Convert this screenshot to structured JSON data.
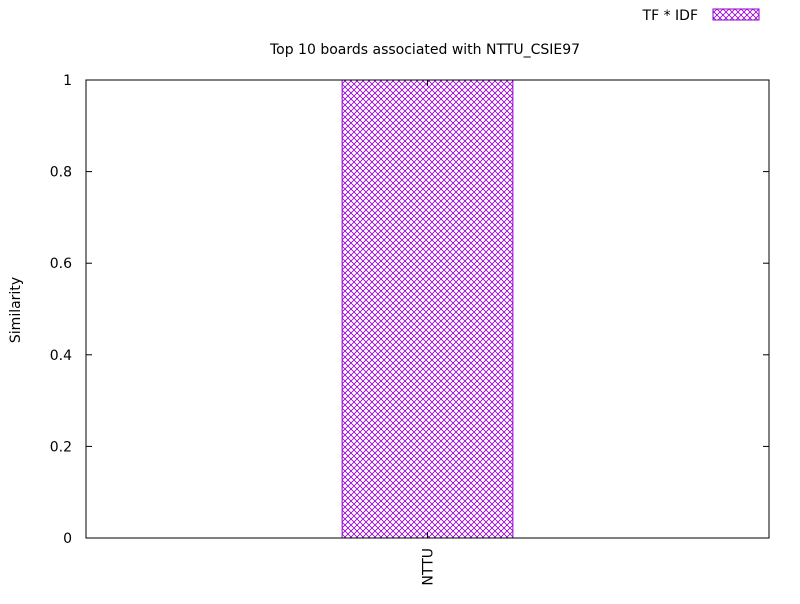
{
  "chart_data": {
    "type": "bar",
    "title": "Top 10 boards associated with NTTU_CSIE97",
    "xlabel": "",
    "ylabel": "Similarity",
    "ylim": [
      0,
      1
    ],
    "yticks": [
      0,
      0.2,
      0.4,
      0.6,
      0.8,
      1
    ],
    "ytick_labels": [
      "0",
      "0.2",
      "0.4",
      "0.6",
      "0.8",
      "1"
    ],
    "categories": [
      "NTTU"
    ],
    "series": [
      {
        "name": "TF * IDF",
        "values": [
          1
        ]
      }
    ],
    "legend_position": "top-right",
    "grid": false,
    "colors": {
      "bar_outline": "#9400d3",
      "bar_hatch": "#9400d3",
      "axis": "#000000",
      "background": "#ffffff"
    }
  }
}
